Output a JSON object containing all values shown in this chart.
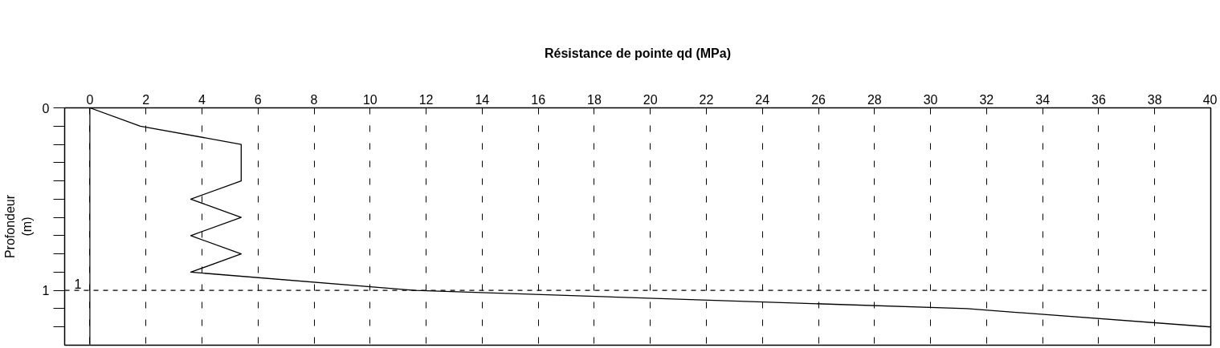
{
  "chart_data": {
    "type": "line",
    "xlabel": "Résistance de pointe qd (MPa)",
    "ylabel": "Profondeur\n(m)",
    "xlim": [
      -0.9,
      40
    ],
    "xticks": [
      0,
      2,
      4,
      6,
      8,
      10,
      12,
      14,
      16,
      18,
      20,
      22,
      24,
      26,
      28,
      30,
      32,
      34,
      36,
      38,
      40
    ],
    "ylim": [
      1.3,
      0
    ],
    "yticks": [
      0,
      {
        "value": 0.1,
        "label": null
      },
      {
        "value": 0.2,
        "label": null
      },
      {
        "value": 0.3,
        "label": null
      },
      {
        "value": 0.4,
        "label": null
      },
      {
        "value": 0.5,
        "label": null
      },
      {
        "value": 0.6,
        "label": null
      },
      {
        "value": 0.7,
        "label": null
      },
      {
        "value": 0.8,
        "label": null
      },
      {
        "value": 0.9,
        "label": null
      },
      1,
      {
        "value": 1.1,
        "label": null
      },
      {
        "value": 1.2,
        "label": null
      }
    ],
    "grid": "x",
    "series": [
      {
        "color": "#000000",
        "x": [
          0,
          1.8,
          5.4,
          5.4,
          3.6,
          5.4,
          3.6,
          5.4,
          3.6,
          11.6,
          31.3,
          40
        ],
        "values": [
          0,
          0.1,
          0.2,
          0.4,
          0.5,
          0.6,
          0.7,
          0.8,
          0.9,
          1.0,
          1.1,
          1.2
        ]
      }
    ],
    "ref_lines": [
      {
        "axis": "y",
        "value": 1,
        "label": "1",
        "color": "#000000",
        "line_style": "dashed"
      },
      {
        "axis": "x",
        "value": 0,
        "color": "#000000",
        "line_style": "solid"
      }
    ]
  }
}
